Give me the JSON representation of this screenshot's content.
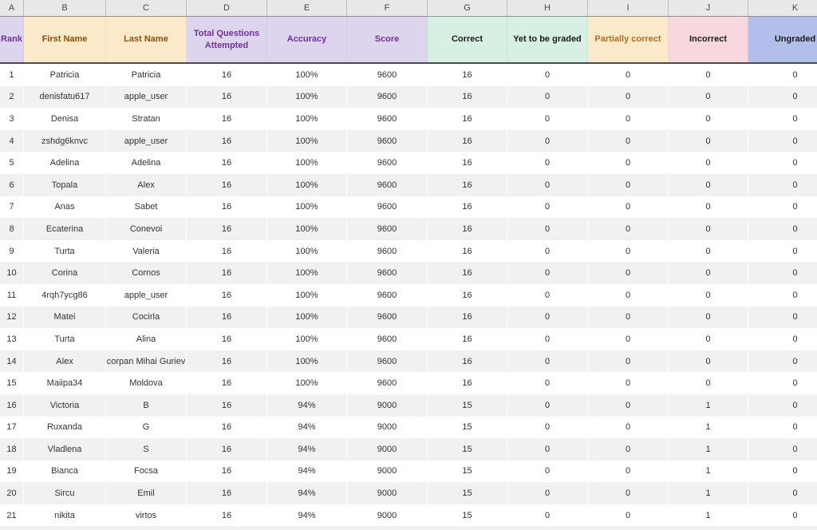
{
  "sheet": {
    "column_letters": [
      "A",
      "B",
      "C",
      "D",
      "E",
      "F",
      "G",
      "H",
      "I",
      "J",
      "K"
    ],
    "columns": [
      {
        "label": "Rank",
        "bg": "#DDD5EE",
        "fg": "#7030A0"
      },
      {
        "label": "First Name",
        "bg": "#FDEACA",
        "fg": "#8F4D08"
      },
      {
        "label": "Last Name",
        "bg": "#FDEACA",
        "fg": "#8F4D08"
      },
      {
        "label": "Total Questions Attempted",
        "bg": "#DDD5EE",
        "fg": "#7030A0"
      },
      {
        "label": "Accuracy",
        "bg": "#DDD5EE",
        "fg": "#7030A0"
      },
      {
        "label": "Score",
        "bg": "#DDD5EE",
        "fg": "#7030A0"
      },
      {
        "label": "Correct",
        "bg": "#D6F0E3",
        "fg": "#1A1A1A"
      },
      {
        "label": "Yet to be graded",
        "bg": "#D6F0E3",
        "fg": "#1A1A1A"
      },
      {
        "label": "Partially correct",
        "bg": "#FDEACA",
        "fg": "#B06F1F"
      },
      {
        "label": "Incorrect",
        "bg": "#F8D8DE",
        "fg": "#1A1A1A"
      },
      {
        "label": "Ungraded",
        "bg": "#B3BFEB",
        "fg": "#1A1A1A"
      }
    ],
    "rows": [
      [
        "1",
        "Patricia",
        "Patricia",
        "16",
        "100%",
        "9600",
        "16",
        "0",
        "0",
        "0",
        "0"
      ],
      [
        "2",
        "denisfatu617",
        "apple_user",
        "16",
        "100%",
        "9600",
        "16",
        "0",
        "0",
        "0",
        "0"
      ],
      [
        "3",
        "Denisa",
        "Stratan",
        "16",
        "100%",
        "9600",
        "16",
        "0",
        "0",
        "0",
        "0"
      ],
      [
        "4",
        "zshdg6knvc",
        "apple_user",
        "16",
        "100%",
        "9600",
        "16",
        "0",
        "0",
        "0",
        "0"
      ],
      [
        "5",
        "Adelina",
        "Adelina",
        "16",
        "100%",
        "9600",
        "16",
        "0",
        "0",
        "0",
        "0"
      ],
      [
        "6",
        "Topala",
        "Alex",
        "16",
        "100%",
        "9600",
        "16",
        "0",
        "0",
        "0",
        "0"
      ],
      [
        "7",
        "Anas",
        "Sabet",
        "16",
        "100%",
        "9600",
        "16",
        "0",
        "0",
        "0",
        "0"
      ],
      [
        "8",
        "Ecaterina",
        "Conevoi",
        "16",
        "100%",
        "9600",
        "16",
        "0",
        "0",
        "0",
        "0"
      ],
      [
        "9",
        "Turta",
        "Valeria",
        "16",
        "100%",
        "9600",
        "16",
        "0",
        "0",
        "0",
        "0"
      ],
      [
        "10",
        "Corina",
        "Cornos",
        "16",
        "100%",
        "9600",
        "16",
        "0",
        "0",
        "0",
        "0"
      ],
      [
        "11",
        "4rqh7ycg86",
        "apple_user",
        "16",
        "100%",
        "9600",
        "16",
        "0",
        "0",
        "0",
        "0"
      ],
      [
        "12",
        "Matei",
        "Cocirla",
        "16",
        "100%",
        "9600",
        "16",
        "0",
        "0",
        "0",
        "0"
      ],
      [
        "13",
        "Turta",
        "Alina",
        "16",
        "100%",
        "9600",
        "16",
        "0",
        "0",
        "0",
        "0"
      ],
      [
        "14",
        "Alex",
        "corpan Mihai Guriev",
        "16",
        "100%",
        "9600",
        "16",
        "0",
        "0",
        "0",
        "0"
      ],
      [
        "15",
        "Maiipa34",
        "Moldova",
        "16",
        "100%",
        "9600",
        "16",
        "0",
        "0",
        "0",
        "0"
      ],
      [
        "16",
        "Victoria",
        "B",
        "16",
        "94%",
        "9000",
        "15",
        "0",
        "0",
        "1",
        "0"
      ],
      [
        "17",
        "Ruxanda",
        "G",
        "16",
        "94%",
        "9000",
        "15",
        "0",
        "0",
        "1",
        "0"
      ],
      [
        "18",
        "Vladlena",
        "S",
        "16",
        "94%",
        "9000",
        "15",
        "0",
        "0",
        "1",
        "0"
      ],
      [
        "19",
        "Bianca",
        "Focsa",
        "16",
        "94%",
        "9000",
        "15",
        "0",
        "0",
        "1",
        "0"
      ],
      [
        "20",
        "Sircu",
        "Emil",
        "16",
        "94%",
        "9000",
        "15",
        "0",
        "0",
        "1",
        "0"
      ],
      [
        "21",
        "nikita",
        "virtos",
        "16",
        "94%",
        "9000",
        "15",
        "0",
        "0",
        "1",
        "0"
      ]
    ]
  },
  "colors": {
    "band_row_bg": "#F1F1F1",
    "header_bottom_border": "#4B4B4B",
    "lavender_header_bg": "#DDD5EE",
    "peach_header_bg": "#FDEACA",
    "mint_header_bg": "#D6F0E3",
    "pink_header_bg": "#F8D8DE",
    "periwinkle_header_bg": "#B3BFEB",
    "purple_header_text": "#7030A0",
    "brown_header_text": "#8F4D08"
  }
}
